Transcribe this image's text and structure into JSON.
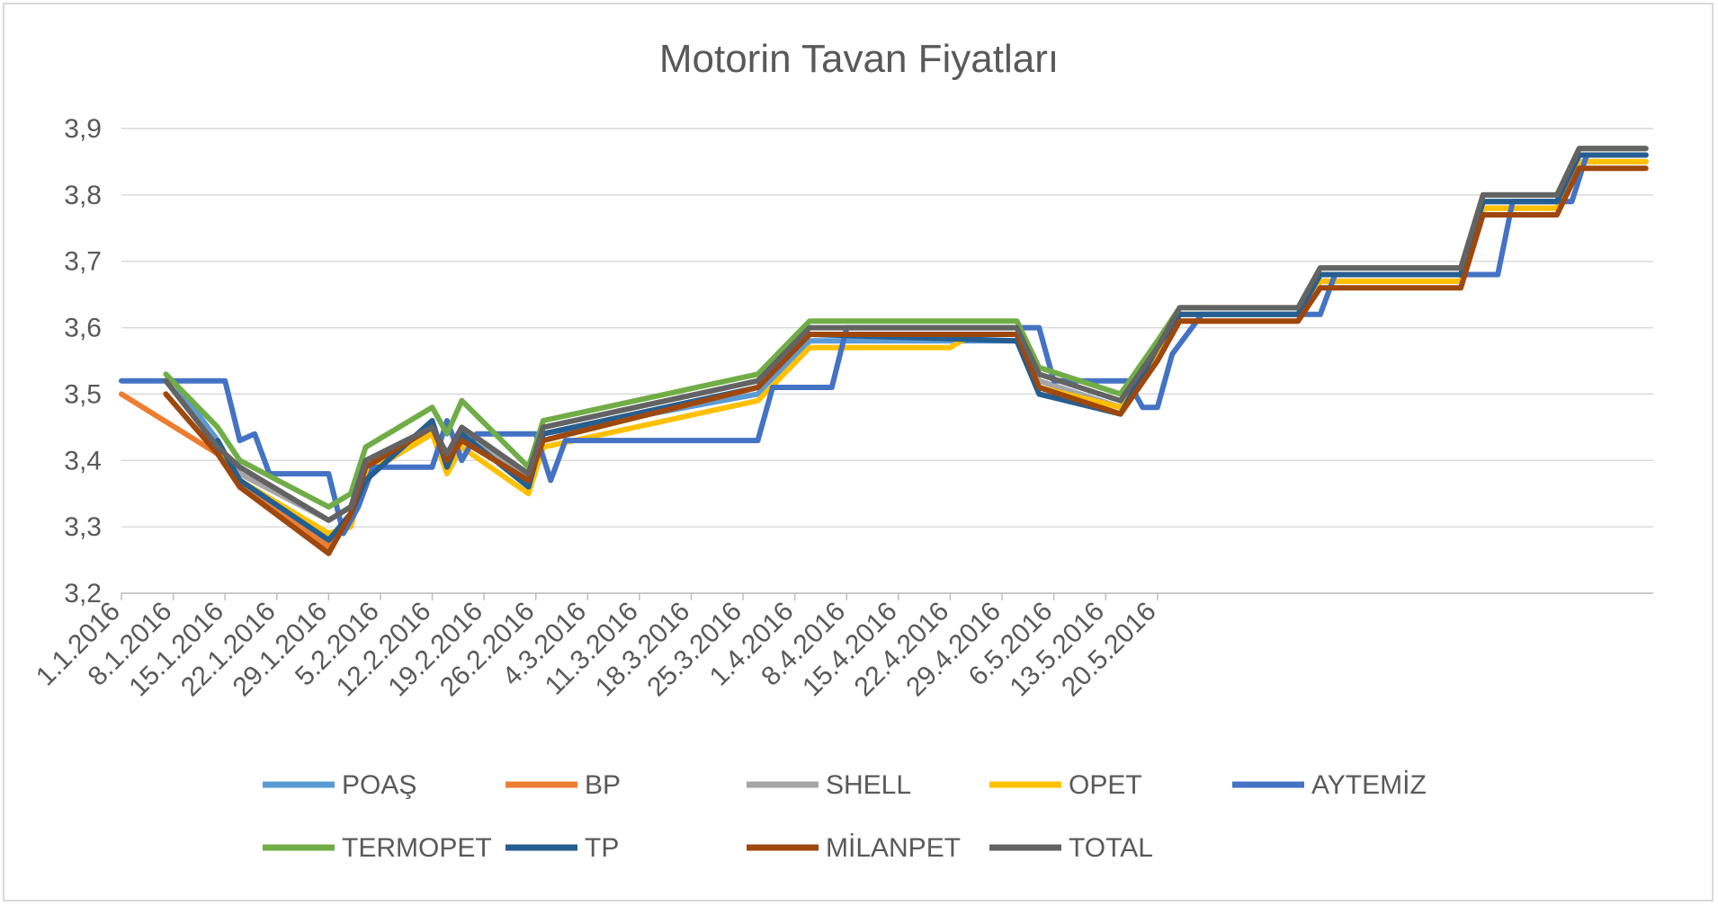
{
  "chart_data": {
    "type": "line",
    "title": "Motorin Tavan  Fiyatları",
    "xlabel": "",
    "ylabel": "",
    "ylim": [
      3.2,
      3.9
    ],
    "yticks": [
      "3,2",
      "3,3",
      "3,4",
      "3,5",
      "3,6",
      "3,7",
      "3,8",
      "3,9"
    ],
    "x_tick_labels": [
      "1.1.2016",
      "8.1.2016",
      "15.1.2016",
      "22.1.2016",
      "29.1.2016",
      "5.2.2016",
      "12.2.2016",
      "19.2.2016",
      "26.2.2016",
      "4.3.2016",
      "11.3.2016",
      "18.3.2016",
      "25.3.2016",
      "1.4.2016",
      "8.4.2016",
      "15.4.2016",
      "22.4.2016",
      "29.4.2016",
      "6.5.2016",
      "13.5.2016",
      "20.5.2016"
    ],
    "grid": true,
    "legend_position": "bottom",
    "series": [
      {
        "name": "POAŞ",
        "color": "#5b9bd5",
        "points": [
          [
            7,
            3.52
          ],
          [
            13,
            3.43
          ],
          [
            16,
            3.37
          ],
          [
            28,
            3.28
          ],
          [
            31,
            3.32
          ],
          [
            33,
            3.38
          ],
          [
            42,
            3.44
          ],
          [
            44,
            3.4
          ],
          [
            46,
            3.44
          ],
          [
            55,
            3.37
          ],
          [
            57,
            3.44
          ],
          [
            86,
            3.5
          ],
          [
            93,
            3.58
          ],
          [
            121,
            3.58
          ],
          [
            124,
            3.52
          ],
          [
            135,
            3.48
          ],
          [
            140,
            3.56
          ],
          [
            143,
            3.62
          ],
          [
            159,
            3.62
          ],
          [
            162,
            3.68
          ],
          [
            181,
            3.68
          ],
          [
            184,
            3.79
          ],
          [
            194,
            3.79
          ],
          [
            197,
            3.86
          ],
          [
            206,
            3.86
          ]
        ]
      },
      {
        "name": "BP",
        "color": "#ed7d31",
        "points": [
          [
            0,
            3.5
          ],
          [
            13,
            3.41
          ],
          [
            16,
            3.36
          ],
          [
            28,
            3.27
          ],
          [
            31,
            3.31
          ],
          [
            33,
            3.39
          ],
          [
            42,
            3.44
          ],
          [
            44,
            3.4
          ],
          [
            46,
            3.43
          ],
          [
            55,
            3.37
          ],
          [
            57,
            3.43
          ],
          [
            86,
            3.51
          ],
          [
            93,
            3.59
          ],
          [
            121,
            3.59
          ],
          [
            124,
            3.51
          ],
          [
            135,
            3.47
          ],
          [
            140,
            3.56
          ],
          [
            143,
            3.61
          ],
          [
            159,
            3.61
          ],
          [
            162,
            3.67
          ],
          [
            181,
            3.67
          ],
          [
            184,
            3.78
          ],
          [
            194,
            3.78
          ],
          [
            197,
            3.85
          ],
          [
            206,
            3.85
          ]
        ]
      },
      {
        "name": "SHELL",
        "color": "#a5a5a5",
        "points": [
          [
            6,
            3.52
          ],
          [
            13,
            3.42
          ],
          [
            16,
            3.38
          ],
          [
            28,
            3.31
          ],
          [
            31,
            3.33
          ],
          [
            33,
            3.39
          ],
          [
            42,
            3.45
          ],
          [
            44,
            3.4
          ],
          [
            46,
            3.44
          ],
          [
            55,
            3.38
          ],
          [
            57,
            3.44
          ],
          [
            86,
            3.51
          ],
          [
            93,
            3.59
          ],
          [
            121,
            3.59
          ],
          [
            124,
            3.52
          ],
          [
            135,
            3.48
          ],
          [
            140,
            3.56
          ],
          [
            143,
            3.62
          ],
          [
            159,
            3.62
          ],
          [
            162,
            3.68
          ],
          [
            181,
            3.68
          ],
          [
            184,
            3.79
          ],
          [
            194,
            3.79
          ],
          [
            197,
            3.86
          ],
          [
            206,
            3.86
          ]
        ]
      },
      {
        "name": "OPET",
        "color": "#ffc000",
        "points": [
          [
            13,
            3.42
          ],
          [
            16,
            3.37
          ],
          [
            28,
            3.29
          ],
          [
            31,
            3.3
          ],
          [
            33,
            3.38
          ],
          [
            42,
            3.44
          ],
          [
            44,
            3.38
          ],
          [
            46,
            3.42
          ],
          [
            55,
            3.35
          ],
          [
            57,
            3.42
          ],
          [
            86,
            3.49
          ],
          [
            93,
            3.57
          ],
          [
            112,
            3.57
          ],
          [
            115,
            3.59
          ],
          [
            121,
            3.59
          ],
          [
            124,
            3.51
          ],
          [
            135,
            3.48
          ],
          [
            140,
            3.56
          ],
          [
            143,
            3.62
          ],
          [
            159,
            3.62
          ],
          [
            162,
            3.67
          ],
          [
            181,
            3.67
          ],
          [
            184,
            3.78
          ],
          [
            194,
            3.78
          ],
          [
            197,
            3.85
          ],
          [
            206,
            3.85
          ]
        ]
      },
      {
        "name": "AYTEMİZ",
        "color": "#4472c4",
        "points": [
          [
            0,
            3.52
          ],
          [
            14,
            3.52
          ],
          [
            16,
            3.43
          ],
          [
            18,
            3.44
          ],
          [
            20,
            3.38
          ],
          [
            28,
            3.38
          ],
          [
            30,
            3.29
          ],
          [
            32,
            3.33
          ],
          [
            34,
            3.39
          ],
          [
            42,
            3.39
          ],
          [
            44,
            3.46
          ],
          [
            46,
            3.4
          ],
          [
            48,
            3.44
          ],
          [
            56,
            3.44
          ],
          [
            58,
            3.37
          ],
          [
            60,
            3.43
          ],
          [
            86,
            3.43
          ],
          [
            88,
            3.51
          ],
          [
            96,
            3.51
          ],
          [
            98,
            3.6
          ],
          [
            124,
            3.6
          ],
          [
            126,
            3.52
          ],
          [
            136,
            3.52
          ],
          [
            138,
            3.48
          ],
          [
            140,
            3.48
          ],
          [
            142,
            3.56
          ],
          [
            146,
            3.62
          ],
          [
            162,
            3.62
          ],
          [
            164,
            3.68
          ],
          [
            186,
            3.68
          ],
          [
            188,
            3.79
          ],
          [
            196,
            3.79
          ],
          [
            198,
            3.86
          ],
          [
            206,
            3.86
          ]
        ]
      },
      {
        "name": "TERMOPET",
        "color": "#70ad47",
        "points": [
          [
            6,
            3.53
          ],
          [
            13,
            3.45
          ],
          [
            16,
            3.4
          ],
          [
            28,
            3.33
          ],
          [
            31,
            3.35
          ],
          [
            33,
            3.42
          ],
          [
            42,
            3.48
          ],
          [
            44,
            3.44
          ],
          [
            46,
            3.49
          ],
          [
            55,
            3.39
          ],
          [
            57,
            3.46
          ],
          [
            86,
            3.53
          ],
          [
            93,
            3.61
          ],
          [
            121,
            3.61
          ],
          [
            124,
            3.54
          ],
          [
            135,
            3.5
          ],
          [
            140,
            3.58
          ],
          [
            143,
            3.63
          ],
          [
            159,
            3.63
          ],
          [
            162,
            3.69
          ],
          [
            181,
            3.69
          ],
          [
            184,
            3.8
          ],
          [
            194,
            3.8
          ],
          [
            197,
            3.87
          ],
          [
            206,
            3.87
          ]
        ]
      },
      {
        "name": "TP",
        "color": "#255e91",
        "points": [
          [
            13,
            3.43
          ],
          [
            16,
            3.37
          ],
          [
            28,
            3.28
          ],
          [
            31,
            3.32
          ],
          [
            33,
            3.37
          ],
          [
            42,
            3.46
          ],
          [
            44,
            3.39
          ],
          [
            46,
            3.44
          ],
          [
            55,
            3.36
          ],
          [
            57,
            3.44
          ],
          [
            86,
            3.51
          ],
          [
            93,
            3.59
          ],
          [
            121,
            3.58
          ],
          [
            124,
            3.5
          ],
          [
            135,
            3.47
          ],
          [
            140,
            3.57
          ],
          [
            143,
            3.62
          ],
          [
            159,
            3.62
          ],
          [
            162,
            3.68
          ],
          [
            181,
            3.68
          ],
          [
            184,
            3.79
          ],
          [
            194,
            3.79
          ],
          [
            197,
            3.86
          ],
          [
            206,
            3.86
          ]
        ]
      },
      {
        "name": "MİLANPET",
        "color": "#9e480e",
        "points": [
          [
            6,
            3.5
          ],
          [
            13,
            3.41
          ],
          [
            16,
            3.36
          ],
          [
            28,
            3.26
          ],
          [
            31,
            3.32
          ],
          [
            33,
            3.39
          ],
          [
            42,
            3.45
          ],
          [
            44,
            3.4
          ],
          [
            46,
            3.43
          ],
          [
            55,
            3.37
          ],
          [
            57,
            3.43
          ],
          [
            86,
            3.51
          ],
          [
            93,
            3.59
          ],
          [
            121,
            3.59
          ],
          [
            124,
            3.51
          ],
          [
            135,
            3.47
          ],
          [
            140,
            3.55
          ],
          [
            143,
            3.61
          ],
          [
            159,
            3.61
          ],
          [
            162,
            3.66
          ],
          [
            181,
            3.66
          ],
          [
            184,
            3.77
          ],
          [
            194,
            3.77
          ],
          [
            197,
            3.84
          ],
          [
            206,
            3.84
          ]
        ]
      },
      {
        "name": "TOTAL",
        "color": "#636363",
        "points": [
          [
            6,
            3.52
          ],
          [
            13,
            3.42
          ],
          [
            16,
            3.39
          ],
          [
            28,
            3.31
          ],
          [
            31,
            3.33
          ],
          [
            33,
            3.4
          ],
          [
            42,
            3.45
          ],
          [
            44,
            3.41
          ],
          [
            46,
            3.45
          ],
          [
            55,
            3.38
          ],
          [
            57,
            3.45
          ],
          [
            86,
            3.52
          ],
          [
            93,
            3.6
          ],
          [
            121,
            3.6
          ],
          [
            124,
            3.53
          ],
          [
            135,
            3.49
          ],
          [
            140,
            3.57
          ],
          [
            143,
            3.63
          ],
          [
            159,
            3.63
          ],
          [
            162,
            3.69
          ],
          [
            181,
            3.69
          ],
          [
            184,
            3.8
          ],
          [
            194,
            3.8
          ],
          [
            197,
            3.87
          ],
          [
            206,
            3.87
          ]
        ]
      }
    ]
  }
}
